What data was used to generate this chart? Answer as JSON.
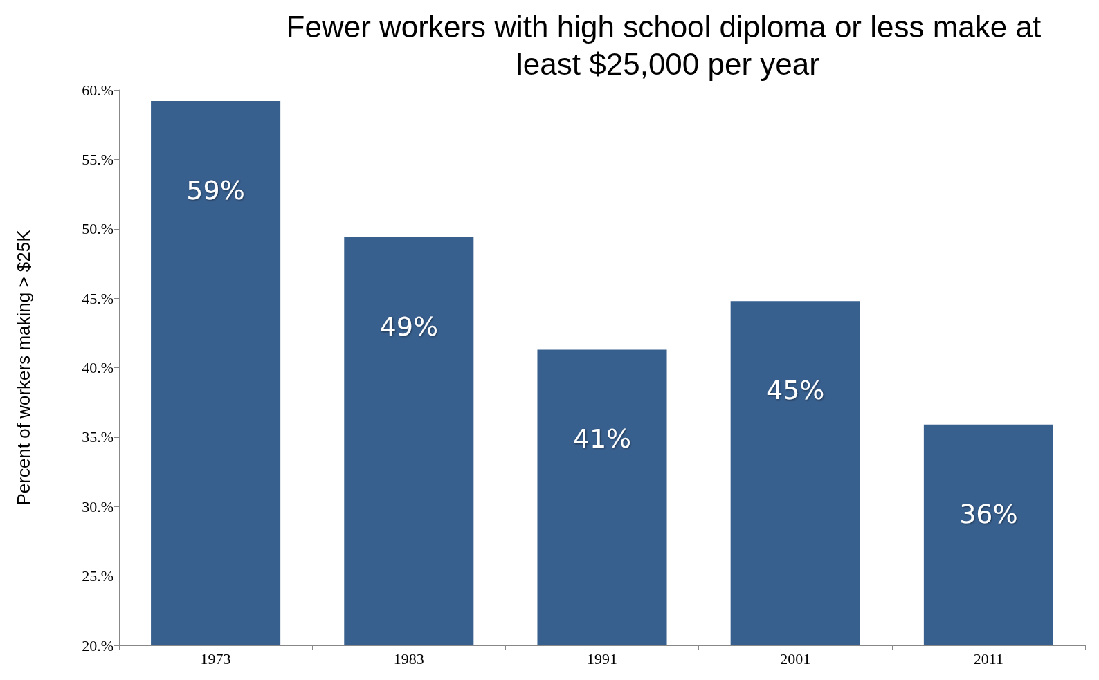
{
  "chart_data": {
    "type": "bar",
    "title": "Fewer workers with high school diploma or less make at least $25,000 per year",
    "ylabel": "Percent of workers making > $25K",
    "categories": [
      "1973",
      "1983",
      "1991",
      "2001",
      "2011"
    ],
    "series": [
      {
        "color": "#38608f",
        "values": [
          59.2,
          49.4,
          41.3,
          44.8,
          35.9
        ],
        "value_labels": [
          "59%",
          "49%",
          "41%",
          "45%",
          "36%"
        ]
      }
    ],
    "ylim": [
      20,
      60
    ],
    "yticks": [
      {
        "value": 20,
        "label": "20.%"
      },
      {
        "value": 25,
        "label": "25.%"
      },
      {
        "value": 30,
        "label": "30.%"
      },
      {
        "value": 35,
        "label": "35.%"
      },
      {
        "value": 40,
        "label": "40.%"
      },
      {
        "value": 45,
        "label": "45.%"
      },
      {
        "value": 50,
        "label": "50.%"
      },
      {
        "value": 55,
        "label": "55.%"
      },
      {
        "value": 60,
        "label": "60.%"
      }
    ],
    "grid": false
  }
}
